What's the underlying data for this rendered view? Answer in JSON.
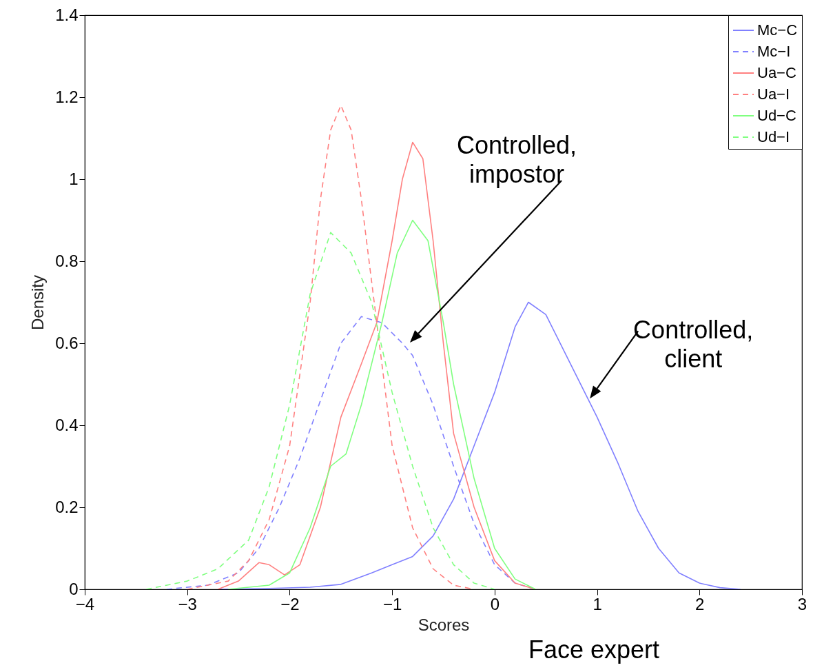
{
  "chart_data": {
    "type": "line",
    "xlabel": "Scores",
    "ylabel": "Density",
    "xlim": [
      -4,
      3
    ],
    "ylim": [
      0,
      1.4
    ],
    "xticks": [
      -4,
      -3,
      -2,
      -1,
      0,
      1,
      2,
      3
    ],
    "yticks": [
      0,
      0.2,
      0.4,
      0.6,
      0.8,
      1,
      1.2,
      1.4
    ],
    "grid": false,
    "legend": "top right",
    "marker": "none",
    "series": [
      {
        "name": "Mc−C",
        "color": "#8080ff",
        "line_style": "solid",
        "x": [
          -2.7,
          -2.2,
          -1.8,
          -1.5,
          -1.2,
          -1,
          -0.8,
          -0.6,
          -0.4,
          -0.2,
          0,
          0.2,
          0.33,
          0.5,
          0.7,
          0.9,
          1,
          1.2,
          1.4,
          1.6,
          1.8,
          2,
          2.2,
          2.4
        ],
        "values": [
          0,
          0.002,
          0.005,
          0.012,
          0.04,
          0.06,
          0.08,
          0.13,
          0.22,
          0.35,
          0.48,
          0.64,
          0.7,
          0.67,
          0.57,
          0.47,
          0.42,
          0.31,
          0.19,
          0.1,
          0.04,
          0.015,
          0.004,
          0
        ]
      },
      {
        "name": "Mc−I",
        "color": "#8080ff",
        "line_style": "dashed",
        "x": [
          -3.2,
          -2.8,
          -2.5,
          -2.3,
          -2.1,
          -1.9,
          -1.7,
          -1.5,
          -1.3,
          -1.1,
          -0.9,
          -0.8,
          -0.6,
          -0.4,
          -0.2,
          0,
          0.2,
          0.4
        ],
        "values": [
          0,
          0.01,
          0.04,
          0.1,
          0.2,
          0.32,
          0.46,
          0.6,
          0.665,
          0.65,
          0.6,
          0.57,
          0.45,
          0.3,
          0.16,
          0.06,
          0.015,
          0
        ]
      },
      {
        "name": "Ua−C",
        "color": "#ff8080",
        "line_style": "solid",
        "x": [
          -2.7,
          -2.5,
          -2.3,
          -2.2,
          -2.05,
          -1.9,
          -1.7,
          -1.5,
          -1.3,
          -1.15,
          -1,
          -0.9,
          -0.8,
          -0.7,
          -0.6,
          -0.5,
          -0.4,
          -0.2,
          0,
          0.2,
          0.4
        ],
        "values": [
          0,
          0.02,
          0.065,
          0.06,
          0.035,
          0.06,
          0.2,
          0.42,
          0.55,
          0.65,
          0.85,
          1,
          1.09,
          1.05,
          0.85,
          0.6,
          0.38,
          0.2,
          0.07,
          0.015,
          0
        ]
      },
      {
        "name": "Ua−I",
        "color": "#ff8080",
        "line_style": "dashed",
        "x": [
          -3,
          -2.6,
          -2.4,
          -2.2,
          -2,
          -1.8,
          -1.7,
          -1.6,
          -1.5,
          -1.4,
          -1.3,
          -1.2,
          -1.1,
          -1,
          -0.8,
          -0.6,
          -0.4,
          -0.2
        ],
        "values": [
          0,
          0.02,
          0.07,
          0.17,
          0.35,
          0.7,
          0.95,
          1.12,
          1.18,
          1.12,
          0.95,
          0.75,
          0.55,
          0.35,
          0.15,
          0.05,
          0.01,
          0
        ]
      },
      {
        "name": "Ud−C",
        "color": "#80ff80",
        "line_style": "solid",
        "x": [
          -2.6,
          -2.2,
          -2,
          -1.8,
          -1.6,
          -1.45,
          -1.3,
          -1.1,
          -0.95,
          -0.8,
          -0.65,
          -0.5,
          -0.4,
          -0.2,
          0,
          0.2,
          0.4
        ],
        "values": [
          0,
          0.01,
          0.04,
          0.15,
          0.3,
          0.33,
          0.45,
          0.65,
          0.82,
          0.9,
          0.85,
          0.65,
          0.5,
          0.27,
          0.1,
          0.025,
          0
        ]
      },
      {
        "name": "Ud−I",
        "color": "#80ff80",
        "line_style": "dashed",
        "x": [
          -3.4,
          -3,
          -2.7,
          -2.4,
          -2.2,
          -2,
          -1.8,
          -1.6,
          -1.4,
          -1.2,
          -1,
          -0.8,
          -0.6,
          -0.4,
          -0.2,
          0
        ],
        "values": [
          0,
          0.02,
          0.05,
          0.12,
          0.25,
          0.45,
          0.72,
          0.87,
          0.82,
          0.7,
          0.48,
          0.3,
          0.15,
          0.06,
          0.015,
          0
        ]
      }
    ],
    "annotations": [
      "Controlled, impostor",
      {
        "text": "Controlled, client",
        "x": 0.93,
        "y": 0.465
      },
      "Face expert"
    ]
  }
}
